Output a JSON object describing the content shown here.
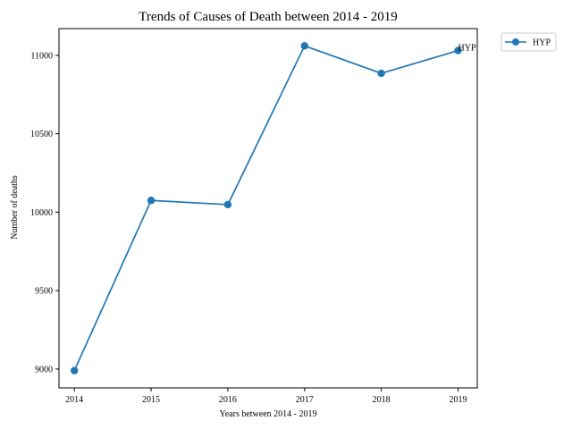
{
  "chart_data": {
    "type": "line",
    "title": "Trends of Causes of Death between 2014 - 2019",
    "xlabel": "Years between 2014 - 2019",
    "ylabel": "Number of deaths",
    "x": [
      2014,
      2015,
      2016,
      2017,
      2018,
      2019
    ],
    "xticks": [
      "2014",
      "2015",
      "2016",
      "2017",
      "2018",
      "2019"
    ],
    "yticks": [
      "9000",
      "9500",
      "10000",
      "10500",
      "11000"
    ],
    "ylim": [
      8880,
      11170
    ],
    "xlim": [
      2013.8,
      2019.25
    ],
    "grid": false,
    "legend_position": "outside top-right",
    "series": [
      {
        "name": "HYP",
        "color": "#1f77b4",
        "marker": "circle",
        "values": [
          8990,
          10075,
          10048,
          11060,
          10885,
          11030
        ]
      }
    ],
    "annotations": [
      {
        "text": "HYP",
        "x": 2019,
        "y": 11030
      }
    ]
  }
}
